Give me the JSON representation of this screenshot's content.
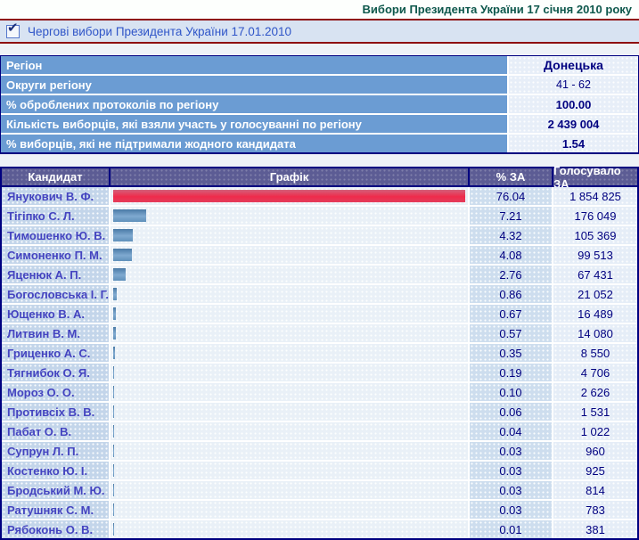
{
  "header": {
    "title": "Вибори Президента України 17 січня 2010 року",
    "subtitle": "Чергові вибори Президента України 17.01.2010"
  },
  "icons": {
    "checkbox_check": "✔"
  },
  "colors": {
    "accent_red_line": "#8f1010",
    "title_green": "#0e584c",
    "navy_text": "#000080",
    "info_label_bg": "#6b9cd3",
    "header_cell_bg": "#5c5c94",
    "candidate_cell_bg": "#c3d5ea",
    "candidate_text": "#4444c0",
    "leader_bar": "#ef2b4b",
    "other_bar": "#6f9cc6"
  },
  "region_info": {
    "rows": [
      {
        "label": "Регіон",
        "value": "Донецька",
        "emphasis": "large"
      },
      {
        "label": "Округи регіону",
        "value": "41 - 62",
        "emphasis": "normal"
      },
      {
        "label": "% оброблених протоколів по регіону",
        "value": "100.00",
        "emphasis": "bold"
      },
      {
        "label": "Кількість виборців, які взяли участь у голосуванні по регіону",
        "value": "2 439 004",
        "emphasis": "bold"
      },
      {
        "label": "% виборців, які не підтримали жодного кандидата",
        "value": "1.54",
        "emphasis": "bold"
      }
    ]
  },
  "results": {
    "columns": [
      "Кандидат",
      "Графік",
      "% ЗА",
      "Голосувало ЗА"
    ],
    "max_percent": 76.04,
    "rows": [
      {
        "candidate": "Янукович В. Ф.",
        "percent": "76.04",
        "votes": "1 854 825",
        "bar": "red"
      },
      {
        "candidate": "Тігіпко С. Л.",
        "percent": "7.21",
        "votes": "176 049",
        "bar": "blue"
      },
      {
        "candidate": "Тимошенко Ю. В.",
        "percent": "4.32",
        "votes": "105 369",
        "bar": "blue"
      },
      {
        "candidate": "Симоненко П. М.",
        "percent": "4.08",
        "votes": "99 513",
        "bar": "blue"
      },
      {
        "candidate": "Яценюк А. П.",
        "percent": "2.76",
        "votes": "67 431",
        "bar": "blue"
      },
      {
        "candidate": "Богословська І. Г.",
        "percent": "0.86",
        "votes": "21 052",
        "bar": "blue"
      },
      {
        "candidate": "Ющенко В. А.",
        "percent": "0.67",
        "votes": "16 489",
        "bar": "blue"
      },
      {
        "candidate": "Литвин В. М.",
        "percent": "0.57",
        "votes": "14 080",
        "bar": "blue"
      },
      {
        "candidate": "Гриценко А. С.",
        "percent": "0.35",
        "votes": "8 550",
        "bar": "blue"
      },
      {
        "candidate": "Тягнибок О. Я.",
        "percent": "0.19",
        "votes": "4 706",
        "bar": "blue"
      },
      {
        "candidate": "Мороз О. О.",
        "percent": "0.10",
        "votes": "2 626",
        "bar": "blue"
      },
      {
        "candidate": "Противсіх В. В.",
        "percent": "0.06",
        "votes": "1 531",
        "bar": "blue"
      },
      {
        "candidate": "Пабат О. В.",
        "percent": "0.04",
        "votes": "1 022",
        "bar": "blue"
      },
      {
        "candidate": "Супрун Л. П.",
        "percent": "0.03",
        "votes": "960",
        "bar": "blue"
      },
      {
        "candidate": "Костенко Ю. І.",
        "percent": "0.03",
        "votes": "925",
        "bar": "blue"
      },
      {
        "candidate": "Бродський М. Ю.",
        "percent": "0.03",
        "votes": "814",
        "bar": "blue"
      },
      {
        "candidate": "Ратушняк С. М.",
        "percent": "0.03",
        "votes": "783",
        "bar": "blue"
      },
      {
        "candidate": "Рябоконь О. В.",
        "percent": "0.01",
        "votes": "381",
        "bar": "blue"
      }
    ]
  }
}
